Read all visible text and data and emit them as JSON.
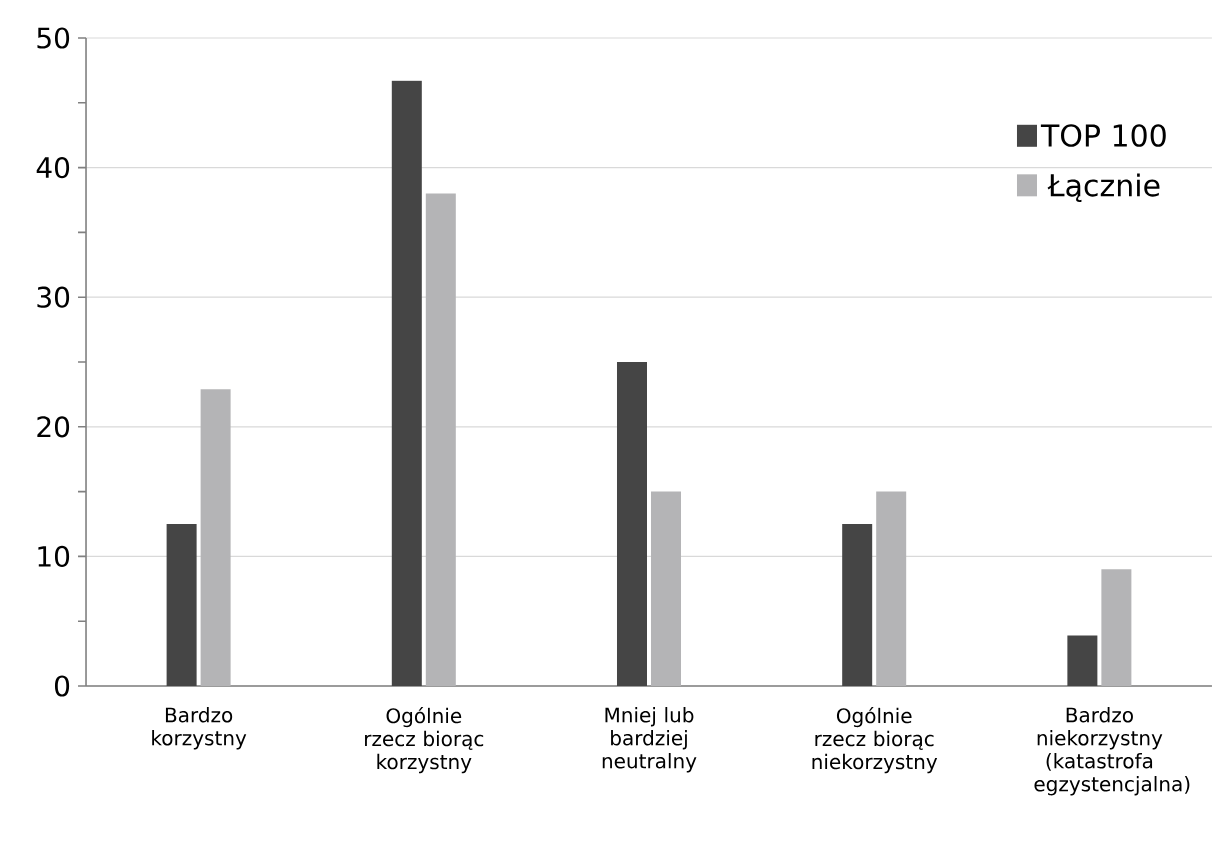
{
  "chart_data": {
    "type": "bar",
    "categories": [
      "Bardzo korzystny",
      "Ogólnie rzecz biorąc korzystny",
      "Mniej lub bardziej neutralny",
      "Ogólnie rzecz biorąc niekorzystny",
      "Bardzo niekorzystny (katastrofa egzystencjalna)"
    ],
    "series": [
      {
        "name": "TOP 100",
        "color": "#454545",
        "values": [
          12.5,
          46.7,
          25,
          12.5,
          3.9
        ]
      },
      {
        "name": "Łącznie",
        "color": "#b4b4b6",
        "values": [
          22.9,
          38,
          15,
          15,
          9
        ]
      }
    ],
    "ylim": [
      0,
      50
    ],
    "yticks": [
      0,
      10,
      20,
      30,
      40,
      50
    ],
    "grid": "y",
    "legend": "top right"
  }
}
